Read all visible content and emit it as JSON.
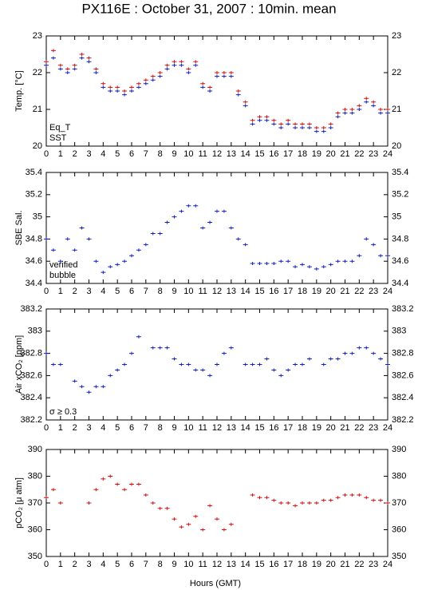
{
  "title": "PX116E : October 31, 2007 : 10min. mean",
  "xlabel": "Hours (GMT)",
  "chart_data": [
    {
      "type": "scatter",
      "ylabel": "Temp. [°C]",
      "x": [
        0,
        0.5,
        1,
        1.5,
        2,
        2.5,
        3,
        3.5,
        4,
        4.5,
        5,
        5.5,
        6,
        6.5,
        7,
        7.5,
        8,
        8.5,
        9,
        9.5,
        10,
        10.5,
        11,
        11.5,
        12,
        12.5,
        13,
        13.5,
        14,
        14.5,
        15,
        15.5,
        16,
        16.5,
        17,
        17.5,
        18,
        18.5,
        19,
        19.5,
        20,
        20.5,
        21,
        21.5,
        22,
        22.5,
        23,
        23.5,
        24
      ],
      "xlim": [
        0,
        24
      ],
      "xticks": [
        0,
        1,
        2,
        3,
        4,
        5,
        6,
        7,
        8,
        9,
        10,
        11,
        12,
        13,
        14,
        15,
        16,
        17,
        18,
        19,
        20,
        21,
        22,
        23,
        24
      ],
      "ylim": [
        20,
        23
      ],
      "yticks": [
        20,
        21,
        22,
        23
      ],
      "series": [
        {
          "name": "Eq_T",
          "color": "#d01010",
          "values": [
            22.3,
            22.6,
            22.2,
            22.1,
            22.2,
            22.5,
            22.4,
            22.1,
            21.7,
            21.6,
            21.6,
            21.5,
            21.6,
            21.7,
            21.8,
            21.9,
            22.0,
            22.2,
            22.3,
            22.3,
            22.1,
            22.3,
            21.7,
            21.6,
            22.0,
            22.0,
            22.0,
            21.5,
            21.2,
            20.7,
            20.8,
            20.8,
            20.7,
            20.6,
            20.7,
            20.6,
            20.6,
            20.6,
            20.5,
            20.5,
            20.6,
            20.9,
            21.0,
            21.0,
            21.1,
            21.3,
            21.2,
            21.0,
            21.0
          ]
        },
        {
          "name": "SST",
          "color": "#1020c0",
          "values": [
            22.2,
            22.4,
            22.1,
            22.0,
            22.1,
            22.4,
            22.3,
            22.0,
            21.6,
            21.5,
            21.5,
            21.4,
            21.5,
            21.6,
            21.7,
            21.8,
            21.9,
            22.1,
            22.2,
            22.2,
            22.0,
            22.2,
            21.6,
            21.5,
            21.9,
            21.9,
            21.9,
            21.4,
            21.1,
            20.6,
            20.7,
            20.7,
            20.6,
            20.5,
            20.6,
            20.5,
            20.5,
            20.5,
            20.4,
            20.4,
            20.5,
            20.8,
            20.9,
            20.9,
            21.0,
            21.2,
            21.1,
            20.9,
            20.9
          ]
        }
      ]
    },
    {
      "type": "scatter",
      "ylabel": "SBE Sal.",
      "x": [
        0,
        0.5,
        1,
        1.5,
        2,
        2.5,
        3,
        3.5,
        4,
        4.5,
        5,
        5.5,
        6,
        6.5,
        7,
        7.5,
        8,
        8.5,
        9,
        9.5,
        10,
        10.5,
        11,
        11.5,
        12,
        12.5,
        13,
        13.5,
        14,
        14.5,
        15,
        15.5,
        16,
        16.5,
        17,
        17.5,
        18,
        18.5,
        19,
        19.5,
        20,
        20.5,
        21,
        21.5,
        22,
        22.5,
        23,
        23.5,
        24
      ],
      "xlim": [
        0,
        24
      ],
      "xticks": [
        0,
        1,
        2,
        3,
        4,
        5,
        6,
        7,
        8,
        9,
        10,
        11,
        12,
        13,
        14,
        15,
        16,
        17,
        18,
        19,
        20,
        21,
        22,
        23,
        24
      ],
      "ylim": [
        34.4,
        35.4
      ],
      "yticks": [
        34.4,
        34.6,
        34.8,
        35,
        35.2,
        35.4
      ],
      "series": [
        {
          "name": "verified",
          "color": "#1020c0",
          "values": [
            34.8,
            34.7,
            34.6,
            34.8,
            34.7,
            34.9,
            34.8,
            34.6,
            34.5,
            34.55,
            34.57,
            34.6,
            34.65,
            34.7,
            34.75,
            34.85,
            34.85,
            34.95,
            35.0,
            35.05,
            35.1,
            35.1,
            34.9,
            34.95,
            35.05,
            35.05,
            34.9,
            34.8,
            34.75,
            34.58,
            34.58,
            34.58,
            34.58,
            34.6,
            34.6,
            34.55,
            34.57,
            34.55,
            34.53,
            34.55,
            34.57,
            34.6,
            34.6,
            34.6,
            34.65,
            34.8,
            34.75,
            34.65,
            34.65
          ]
        },
        {
          "name": "bubble",
          "color": "#d020d0",
          "values": []
        }
      ]
    },
    {
      "type": "scatter",
      "ylabel": "Air xCO₂ [ppm]",
      "annotation": "σ ≥ 0.3",
      "annotation_color": "#d020d0",
      "x": [
        0,
        0.5,
        1,
        1.5,
        2,
        2.5,
        3,
        3.5,
        4,
        4.5,
        5,
        5.5,
        6,
        6.5,
        7,
        7.5,
        8,
        8.5,
        9,
        9.5,
        10,
        10.5,
        11,
        11.5,
        12,
        12.5,
        13,
        13.5,
        14,
        14.5,
        15,
        15.5,
        16,
        16.5,
        17,
        17.5,
        18,
        18.5,
        19,
        19.5,
        20,
        20.5,
        21,
        21.5,
        22,
        22.5,
        23,
        23.5,
        24
      ],
      "xlim": [
        0,
        24
      ],
      "xticks": [
        0,
        1,
        2,
        3,
        4,
        5,
        6,
        7,
        8,
        9,
        10,
        11,
        12,
        13,
        14,
        15,
        16,
        17,
        18,
        19,
        20,
        21,
        22,
        23,
        24
      ],
      "ylim": [
        382.2,
        383.2
      ],
      "yticks": [
        382.2,
        382.4,
        382.6,
        382.8,
        383,
        383.2
      ],
      "series": [
        {
          "color": "#1020c0",
          "values": [
            382.8,
            382.7,
            382.7,
            null,
            382.55,
            382.5,
            382.45,
            382.5,
            382.5,
            382.6,
            382.65,
            382.7,
            382.8,
            382.95,
            null,
            382.85,
            382.85,
            382.85,
            382.75,
            382.7,
            382.7,
            382.65,
            382.65,
            382.6,
            382.7,
            382.8,
            382.85,
            null,
            382.7,
            382.7,
            382.7,
            382.75,
            382.65,
            382.6,
            382.65,
            382.7,
            382.7,
            382.75,
            null,
            382.7,
            382.75,
            382.75,
            382.8,
            382.8,
            382.85,
            382.85,
            382.8,
            382.75,
            382.7
          ]
        }
      ]
    },
    {
      "type": "scatter",
      "ylabel": "pCO₂ [μ atm]",
      "x": [
        0,
        0.5,
        1,
        1.5,
        2,
        2.5,
        3,
        3.5,
        4,
        4.5,
        5,
        5.5,
        6,
        6.5,
        7,
        7.5,
        8,
        8.5,
        9,
        9.5,
        10,
        10.5,
        11,
        11.5,
        12,
        12.5,
        13,
        13.5,
        14,
        14.5,
        15,
        15.5,
        16,
        16.5,
        17,
        17.5,
        18,
        18.5,
        19,
        19.5,
        20,
        20.5,
        21,
        21.5,
        22,
        22.5,
        23,
        23.5,
        24
      ],
      "xlim": [
        0,
        24
      ],
      "xticks": [
        0,
        1,
        2,
        3,
        4,
        5,
        6,
        7,
        8,
        9,
        10,
        11,
        12,
        13,
        14,
        15,
        16,
        17,
        18,
        19,
        20,
        21,
        22,
        23,
        24
      ],
      "ylim": [
        350,
        390
      ],
      "yticks": [
        350,
        360,
        370,
        380,
        390
      ],
      "series": [
        {
          "color": "#d01010",
          "values": [
            372,
            375,
            370,
            null,
            null,
            null,
            370,
            375,
            379,
            380,
            377,
            375,
            377,
            377,
            373,
            370,
            368,
            368,
            364,
            361,
            362,
            365,
            360,
            369,
            364,
            360,
            362,
            null,
            null,
            373,
            372,
            372,
            371,
            370,
            370,
            369,
            370,
            370,
            370,
            371,
            371,
            372,
            373,
            373,
            373,
            372,
            371,
            371,
            370
          ]
        }
      ]
    }
  ]
}
